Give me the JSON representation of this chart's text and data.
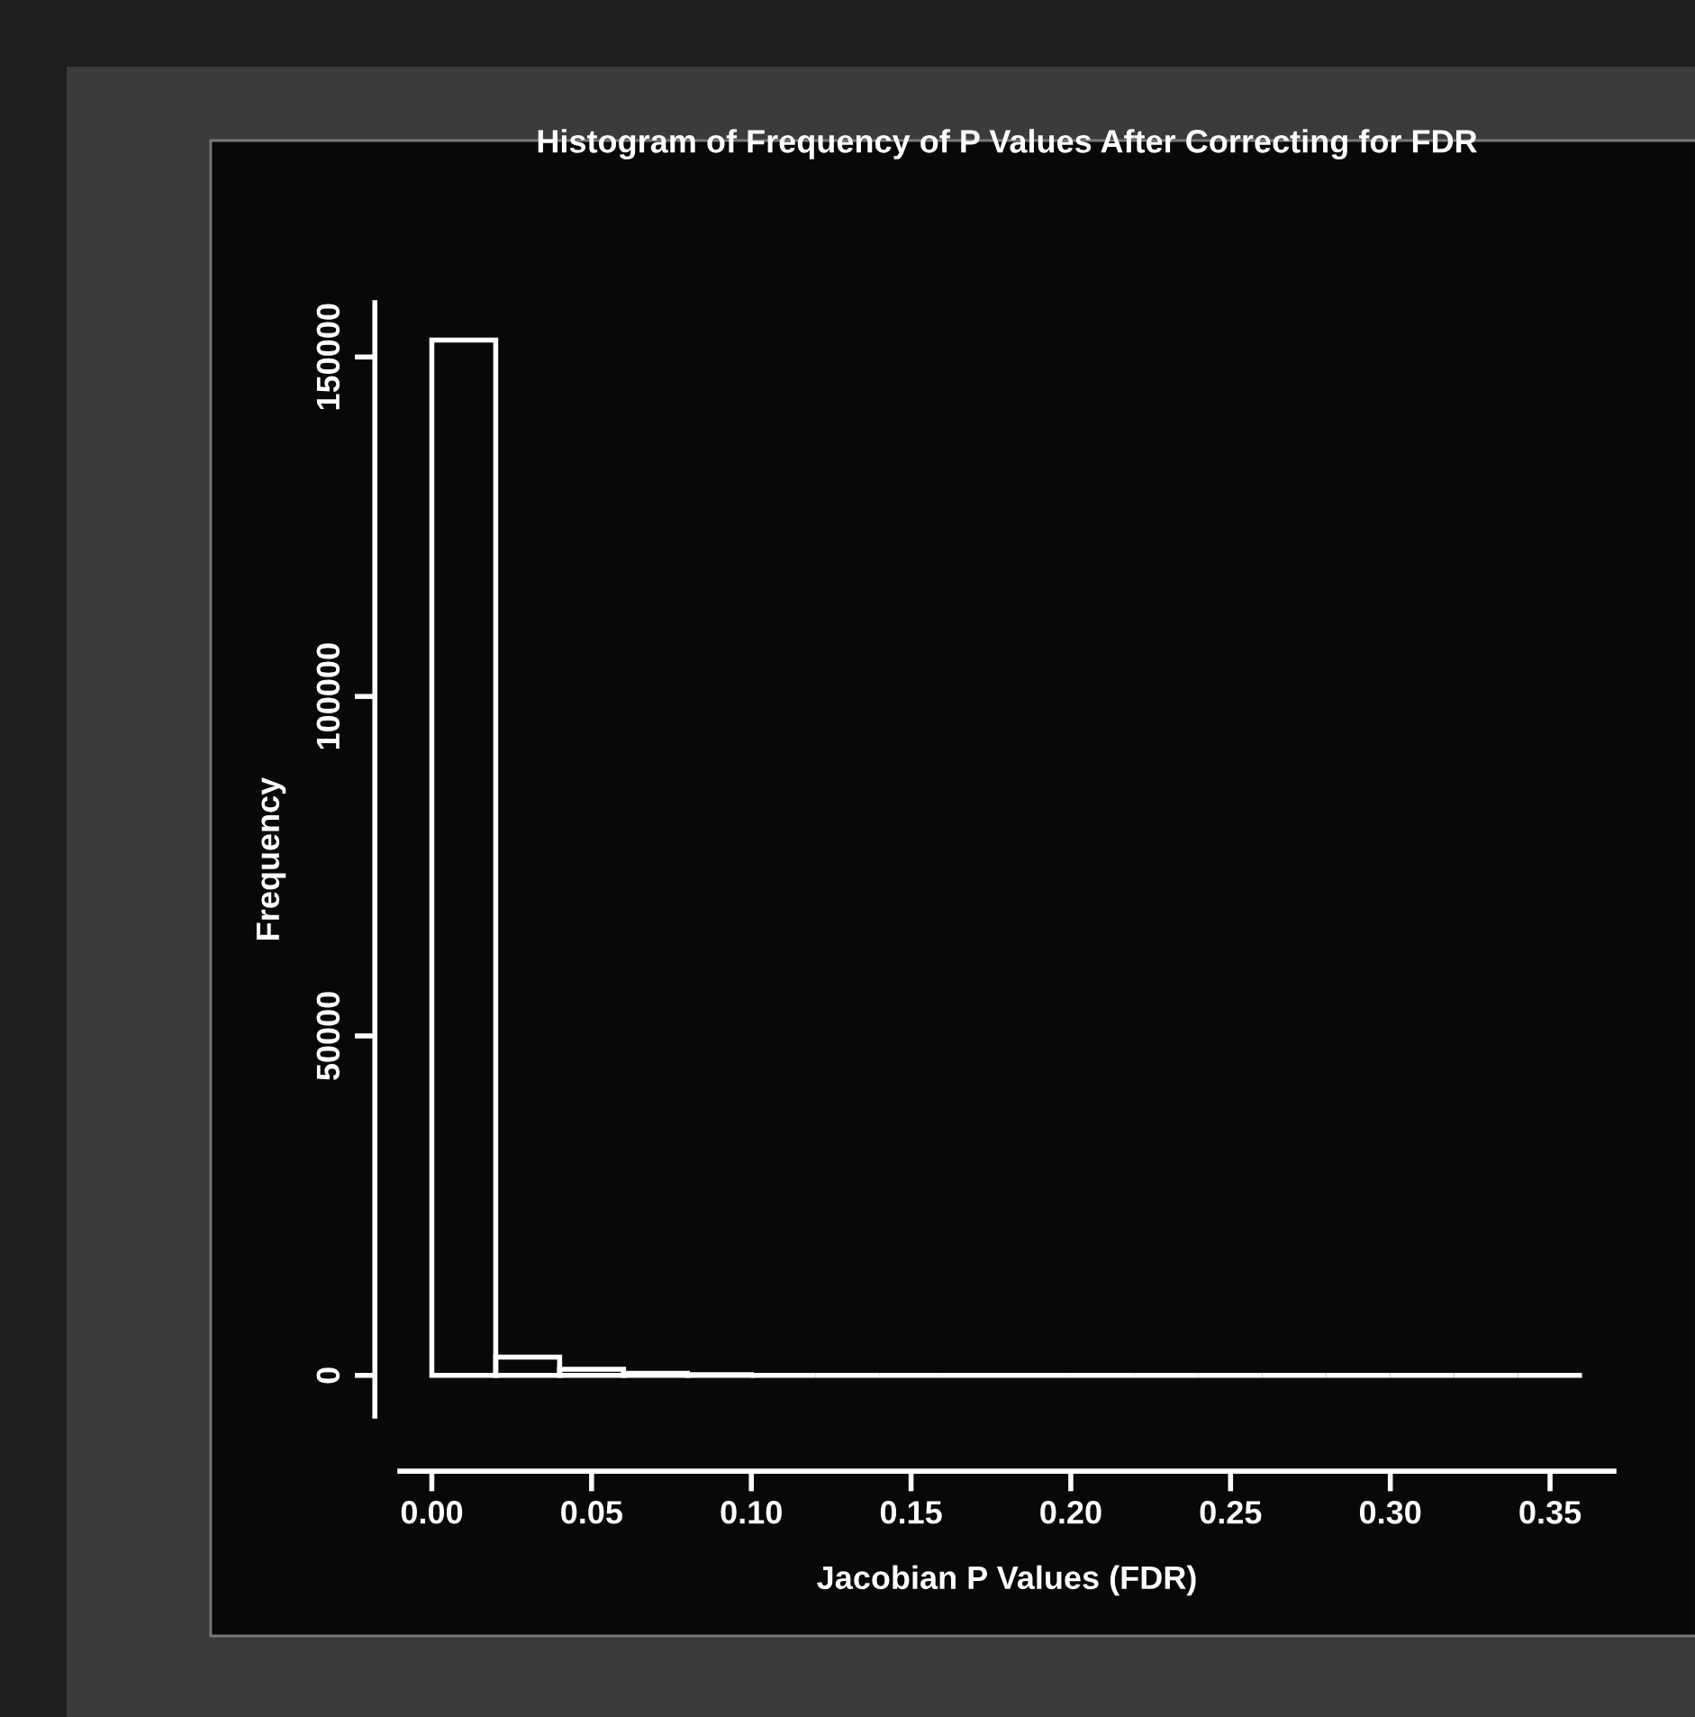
{
  "chart_data": {
    "type": "histogram",
    "title": "Histogram of Frequency of P Values After Correcting for FDR",
    "xlabel": "Jacobian P Values (FDR)",
    "ylabel": "Frequency",
    "bins": [
      0,
      0.02,
      0.04,
      0.06,
      0.08,
      0.1,
      0.12,
      0.14,
      0.16,
      0.18,
      0.2,
      0.22,
      0.24,
      0.26,
      0.28,
      0.3,
      0.32,
      0.34,
      0.36
    ],
    "values": [
      152500,
      2700,
      900,
      300,
      100,
      0,
      0,
      0,
      0,
      0,
      0,
      0,
      0,
      0,
      0,
      0,
      0,
      0
    ],
    "color": "#ffffff",
    "xlim": [
      -0.01,
      0.37
    ],
    "ylim": [
      -6000,
      158000
    ],
    "xticks": [
      {
        "value": 0,
        "label": "0.00"
      },
      {
        "value": 0.05,
        "label": "0.05"
      },
      {
        "value": 0.1,
        "label": "0.10"
      },
      {
        "value": 0.15,
        "label": "0.15"
      },
      {
        "value": 0.2,
        "label": "0.20"
      },
      {
        "value": 0.25,
        "label": "0.25"
      },
      {
        "value": 0.3,
        "label": "0.30"
      },
      {
        "value": 0.35,
        "label": "0.35"
      }
    ],
    "yticks": [
      0,
      50000,
      100000,
      150000
    ],
    "grid": false
  }
}
